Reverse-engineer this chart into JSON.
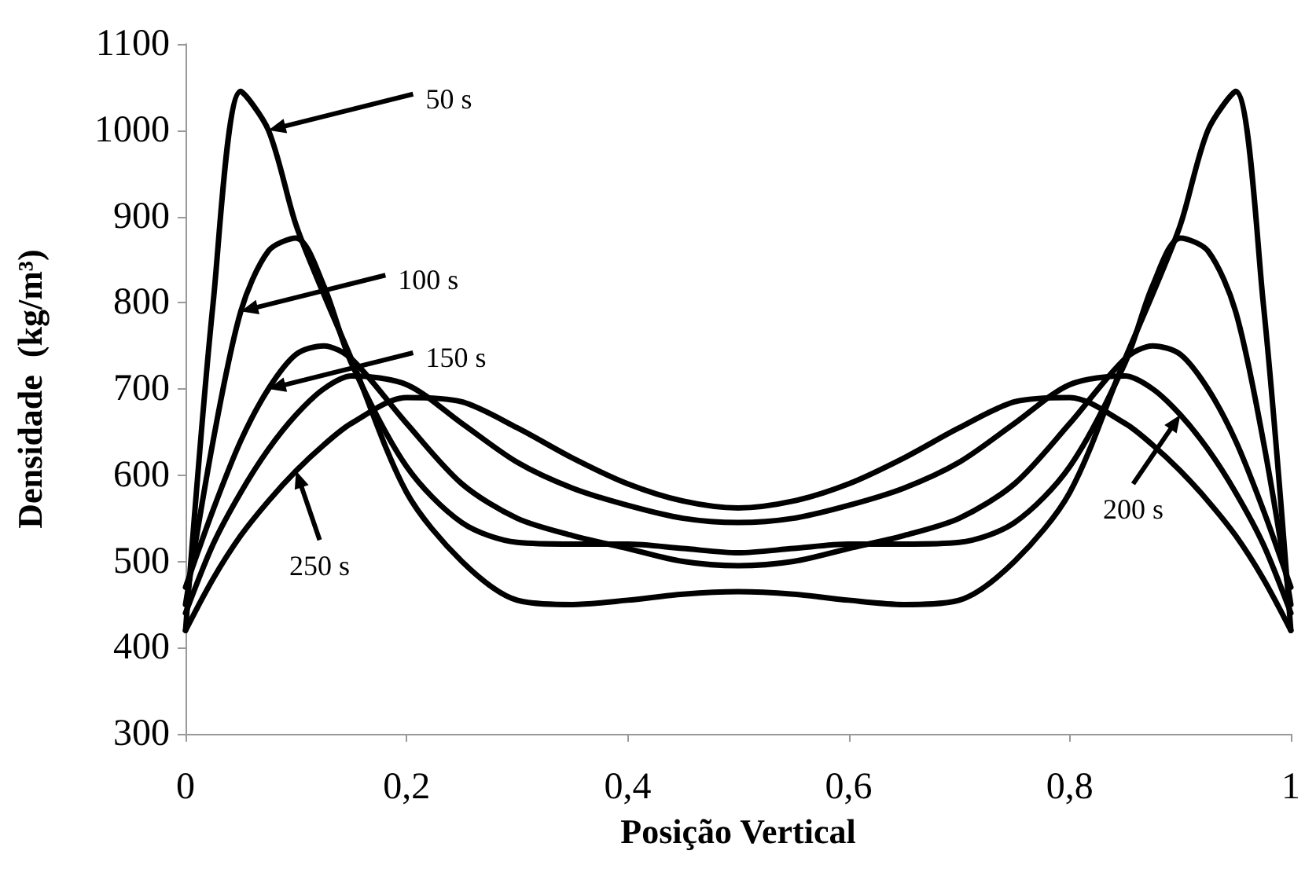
{
  "chart_data": {
    "type": "line",
    "xlabel": "Posição Vertical",
    "ylabel": "Densidade  (kg/m³)",
    "x": [
      0,
      0.025,
      0.05,
      0.075,
      0.1,
      0.125,
      0.15,
      0.2,
      0.25,
      0.3,
      0.35,
      0.4,
      0.45,
      0.5,
      0.55,
      0.6,
      0.65,
      0.7,
      0.75,
      0.8,
      0.85,
      0.875,
      0.9,
      0.925,
      0.95,
      0.975,
      1
    ],
    "series": [
      {
        "color": "#000000",
        "values": [
          420,
          800,
          1045,
          1000,
          890,
          810,
          735,
          580,
          500,
          455,
          450,
          455,
          462,
          465,
          462,
          455,
          450,
          455,
          500,
          580,
          735,
          810,
          890,
          1000,
          1045,
          800,
          420
        ]
      },
      {
        "color": "#000000",
        "values": [
          450,
          640,
          790,
          860,
          875,
          820,
          730,
          610,
          545,
          522,
          520,
          520,
          515,
          510,
          515,
          520,
          520,
          522,
          545,
          610,
          730,
          820,
          875,
          860,
          790,
          640,
          450
        ]
      },
      {
        "color": "#000000",
        "values": [
          470,
          560,
          640,
          700,
          740,
          750,
          735,
          660,
          590,
          550,
          530,
          515,
          500,
          495,
          500,
          515,
          530,
          550,
          590,
          660,
          735,
          750,
          740,
          700,
          640,
          560,
          470
        ]
      },
      {
        "color": "#000000",
        "values": [
          440,
          520,
          580,
          630,
          670,
          700,
          715,
          705,
          660,
          615,
          585,
          565,
          550,
          545,
          550,
          565,
          585,
          615,
          660,
          705,
          715,
          700,
          670,
          630,
          580,
          520,
          440
        ]
      },
      {
        "color": "#000000",
        "values": [
          420,
          480,
          530,
          570,
          605,
          635,
          660,
          690,
          685,
          655,
          620,
          590,
          570,
          562,
          570,
          590,
          620,
          655,
          685,
          690,
          660,
          635,
          605,
          570,
          530,
          480,
          420
        ]
      }
    ],
    "xlim": [
      0,
      1
    ],
    "xticks": [
      0,
      {
        "value": 0.2,
        "label": "0,2"
      },
      {
        "value": 0.4,
        "label": "0,4"
      },
      {
        "value": 0.6,
        "label": "0,6"
      },
      {
        "value": 0.8,
        "label": "0,8"
      },
      1
    ],
    "ylim": [
      300,
      1100
    ],
    "yticks": [
      300,
      400,
      500,
      600,
      700,
      800,
      900,
      1000,
      1100
    ],
    "marker": "none",
    "line_style": "solid",
    "grid": false,
    "annotations": [
      {
        "text": "50 s",
        "x": 0.075,
        "y": 1000
      },
      {
        "text": "100 s",
        "x": 0.05,
        "y": 790
      },
      {
        "text": "150 s",
        "x": 0.075,
        "y": 700
      },
      {
        "text": "250 s",
        "x": 0.1,
        "y": 605
      },
      {
        "text": "200 s",
        "x": 0.9,
        "y": 670
      }
    ]
  }
}
